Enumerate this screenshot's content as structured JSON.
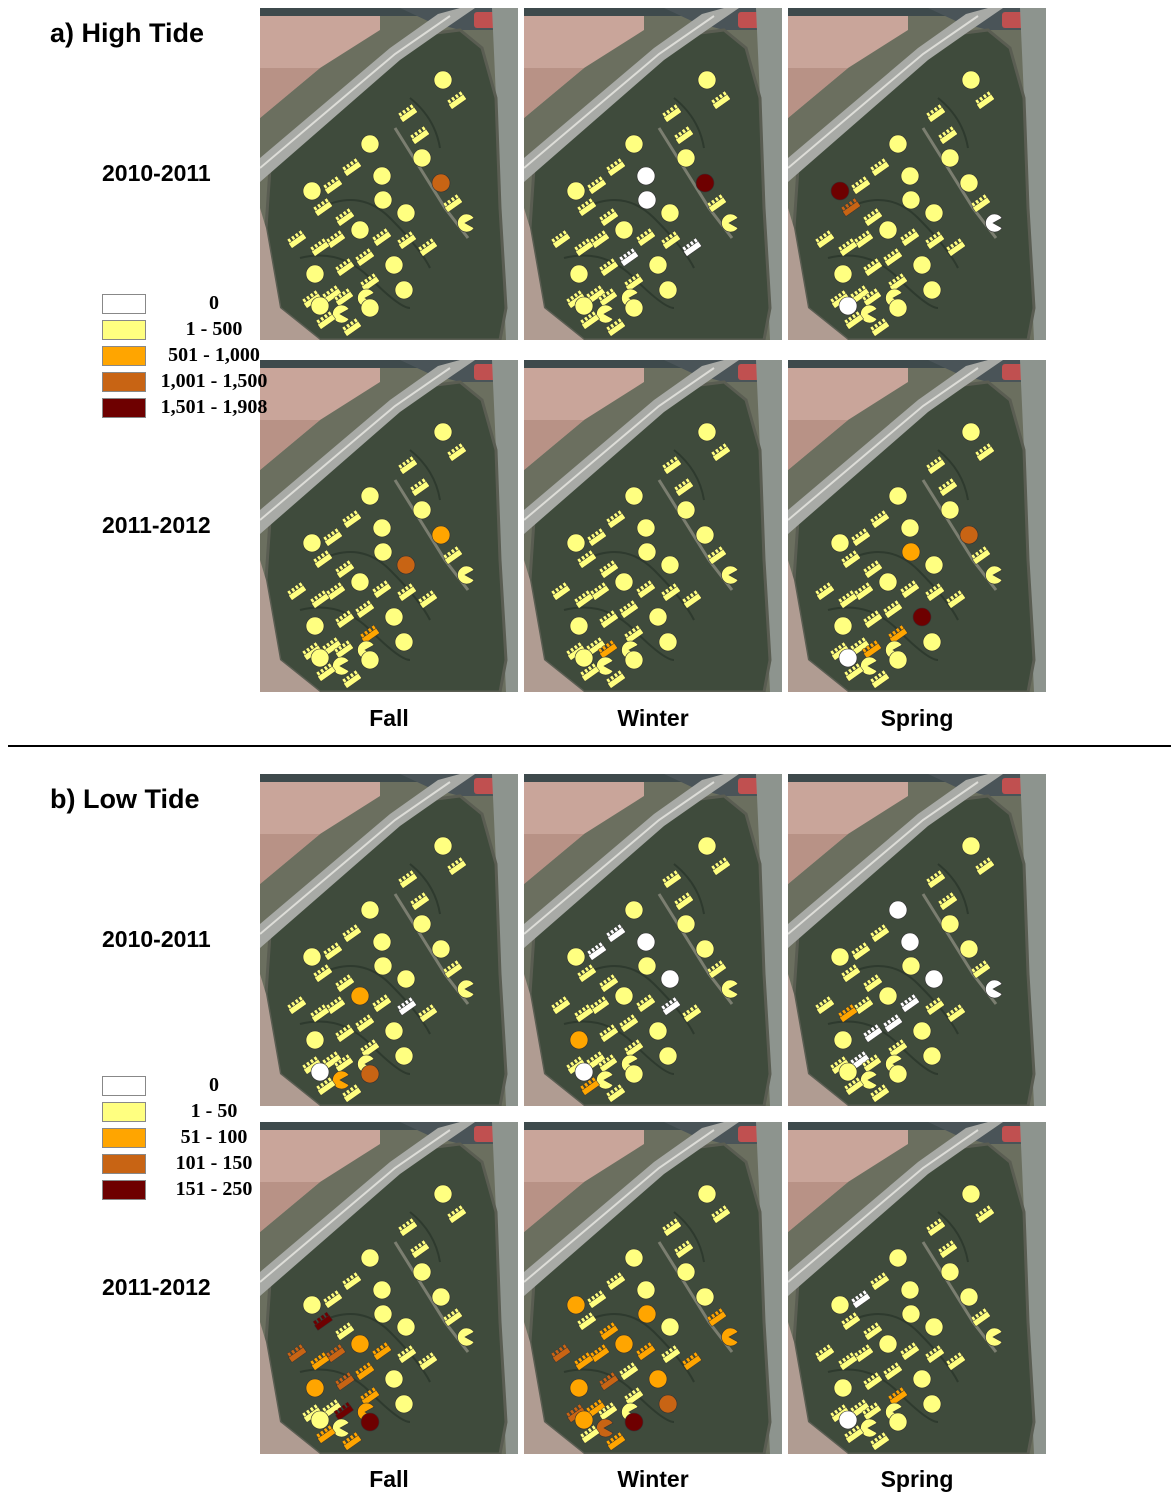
{
  "sections": [
    {
      "title": "a) High Tide",
      "years": [
        "2010-2011",
        "2011-2012"
      ],
      "seasons": [
        "Fall",
        "Winter",
        "Spring"
      ],
      "legend": [
        {
          "label": "0",
          "color": "#ffffff"
        },
        {
          "label": "1 - 500",
          "color": "#ffff80"
        },
        {
          "label": "501 - 1,000",
          "color": "#ffa500"
        },
        {
          "label": "1,001 - 1,500",
          "color": "#c86414"
        },
        {
          "label": "1,501 - 1,908",
          "color": "#6e0000"
        }
      ],
      "panels": [
        {
          "class_overrides": {
            "9": 3
          }
        },
        {
          "class_overrides": {
            "6": 0,
            "9": 4,
            "12": 0,
            "23": 0,
            "24": 0
          }
        },
        {
          "class_overrides": {
            "11": 4,
            "13": 3,
            "16": 0,
            "34": 0
          }
        },
        {
          "class_overrides": {
            "9": 2,
            "14": 3,
            "28": 2
          }
        },
        {
          "class_overrides": {
            "31": 2
          }
        },
        {
          "class_overrides": {
            "9": 3,
            "12": 2,
            "25": 4,
            "28": 2,
            "31": 2,
            "34": 0
          }
        }
      ]
    },
    {
      "title": "b) Low Tide",
      "years": [
        "2010-2011",
        "2011-2012"
      ],
      "seasons": [
        "Fall",
        "Winter",
        "Spring"
      ],
      "legend": [
        {
          "label": "0",
          "color": "#ffffff"
        },
        {
          "label": "1 - 50",
          "color": "#ffff80"
        },
        {
          "label": "51 - 100",
          "color": "#ffa500"
        },
        {
          "label": "101 - 150",
          "color": "#c86414"
        },
        {
          "label": "151 - 250",
          "color": "#6e0000"
        }
      ],
      "panels": [
        {
          "class_overrides": {
            "17": 2,
            "20": 0,
            "34": 0,
            "35": 3,
            "36": 2
          }
        },
        {
          "class_overrides": {
            "6": 0,
            "7": 0,
            "8": 0,
            "14": 0,
            "20": 0,
            "27": 2,
            "34": 0,
            "37": 2
          }
        },
        {
          "class_overrides": {
            "4": 0,
            "6": 0,
            "14": 0,
            "16": 0,
            "18": 0,
            "22": 2,
            "24": 0,
            "26": 0,
            "30": 0
          }
        },
        {
          "class_overrides": {
            "13": 4,
            "17": 2,
            "18": 2,
            "19": 3,
            "21": 3,
            "22": 2,
            "24": 2,
            "26": 3,
            "27": 2,
            "28": 2,
            "31": 4,
            "32": 2,
            "35": 4,
            "37": 2,
            "38": 2
          }
        },
        {
          "class_overrides": {
            "10": 2,
            "11": 2,
            "12": 2,
            "15": 2,
            "16": 2,
            "17": 2,
            "18": 2,
            "19": 2,
            "21": 3,
            "22": 2,
            "23": 2,
            "25": 2,
            "26": 3,
            "27": 2,
            "29": 3,
            "30": 2,
            "33": 3,
            "34": 2,
            "35": 4,
            "36": 3,
            "38": 2
          }
        },
        {
          "class_overrides": {
            "8": 0,
            "28": 2,
            "34": 0
          }
        }
      ]
    }
  ]
}
